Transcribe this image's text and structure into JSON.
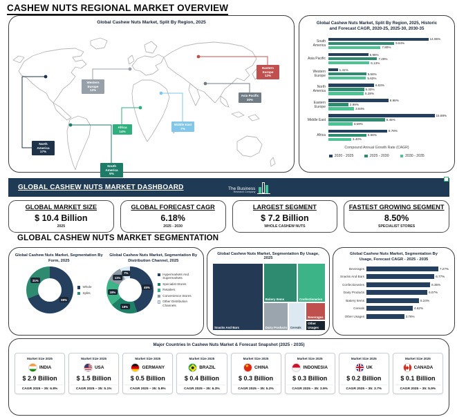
{
  "page_title": "CASHEW NUTS REGIONAL MARKET OVERVIEW",
  "map_panel": {
    "title": "Global Cashew Nuts Market, Split By Region, 2025",
    "regions": [
      {
        "name": "North America",
        "share": "17%",
        "color": "#1e3349"
      },
      {
        "name": "Western Europe",
        "share": "12%",
        "color": "#97a0a9"
      },
      {
        "name": "Eastern Europe",
        "share": "12%",
        "color": "#c0504d"
      },
      {
        "name": "Asia Pacific",
        "share": "30%",
        "color": "#6f7b85"
      },
      {
        "name": "Middle East",
        "share": "7%",
        "color": "#82c7ea"
      },
      {
        "name": "Africa",
        "share": "14%",
        "color": "#2fae7e"
      },
      {
        "name": "South America",
        "share": "9%",
        "color": "#1e7b68"
      }
    ]
  },
  "dashboard": {
    "title": "GLOBAL CASHEW NUTS MARKET DASHBOARD",
    "logo_line1": "The Business",
    "logo_line2": "Research Company",
    "cards": [
      {
        "heading": "GLOBAL MARKET SIZE",
        "value": "$ 10.4 Billion",
        "sub": "2025"
      },
      {
        "heading": "GLOBAL FORECAST CAGR",
        "value": "6.18%",
        "sub": "2025 - 2030"
      },
      {
        "heading": "LARGEST SEGMENT",
        "value": "$ 7.2 Billion",
        "sub": "WHOLE CASHEW NUTS"
      },
      {
        "heading": "FASTEST GROWING SEGMENT",
        "value": "8.50%",
        "sub": "SPECIALIST STORES"
      }
    ]
  },
  "segmentation_title": "GLOBAL CASHEW NUTS MARKET SEGMENTATION",
  "chart_data": [
    {
      "id": "region_cagr",
      "type": "bar",
      "title": "Global Cashew Nuts Market, Split By Region, 2025, Historic and Forecast CAGR, 2020-25, 2025-30, 2030-35",
      "categories": [
        "South America",
        "Asia Pacific",
        "Western Europe",
        "North America",
        "Eastern Europe",
        "Middle East",
        "Africa"
      ],
      "series": [
        {
          "name": "2020 - 2025",
          "color": "#24405e",
          "values": [
            14.96,
            5.96,
            1.41,
            6.83,
            8.98,
            15.88,
            8.78
          ]
        },
        {
          "name": "2025 - 2030",
          "color": "#2e8b70",
          "values": [
            9.84,
            7.29,
            5.66,
            5.33,
            2.99,
            8.45,
            5.68
          ]
        },
        {
          "name": "2030 - 2035",
          "color": "#4bc392",
          "values": [
            7.8,
            6.13,
            5.63,
            5.28,
            3.84,
            3.59,
            3.4
          ]
        }
      ],
      "xlabel": "Compound Annual Growth Rate (CAGR)",
      "xlim": [
        0,
        18
      ],
      "legend_position": "bottom",
      "grid": false
    },
    {
      "id": "form_donut",
      "type": "pie",
      "title": "Global Cashew Nuts Market, Segmentation By Form, 2025",
      "labels": [
        "Whole",
        "Splits"
      ],
      "values": [
        69,
        31
      ],
      "colors": [
        "#24405e",
        "#2e8b70"
      ],
      "legend_position": "right"
    },
    {
      "id": "distribution_donut",
      "type": "pie",
      "title": "Global Cashew Nuts Market, Segmentation By Distribution Channel, 2025",
      "labels": [
        "Hypermarkets And Supermarkets",
        "Specialist Stores",
        "Retailers",
        "Convenience Stores",
        "Other Distribution Channels"
      ],
      "values": [
        45,
        19,
        18,
        11,
        7
      ],
      "colors": [
        "#24405e",
        "#1f8068",
        "#3cb488",
        "#8e9aa3",
        "#d9e8f5"
      ],
      "legend_position": "right"
    },
    {
      "id": "usage_treemap",
      "type": "heatmap",
      "title": "Global Cashew Nuts Market, Segmentation By Usage, 2025",
      "items": [
        {
          "label": "Snacks And Bars",
          "color": "#243a54"
        },
        {
          "label": "Bakery Items",
          "color": "#2e8b70"
        },
        {
          "label": "Confectionaries",
          "color": "#3cb488"
        },
        {
          "label": "Dairy Products",
          "color": "#9aa5ad"
        },
        {
          "label": "Cereals",
          "color": "#dce9f2"
        },
        {
          "label": "Beverages",
          "color": "#c0504d"
        },
        {
          "label": "Other Usages",
          "color": "#18242f"
        }
      ]
    },
    {
      "id": "usage_cagr",
      "type": "bar",
      "title": "Global Cashew Nuts Market, Segmentation By Usage, Forecast CAGR - 2025 - 2035",
      "categories": [
        "Beverages",
        "Snacks And Bars",
        "Confectionaries",
        "Dairy Products",
        "Bakery Items",
        "Cereals",
        "Other Usages"
      ],
      "values": [
        7.27,
        6.77,
        6.35,
        6.07,
        5.24,
        4.62,
        3.76
      ],
      "color": "#24405e",
      "xlim": [
        0,
        8.2
      ],
      "grid": false
    }
  ],
  "countries_panel": {
    "title": "Major Countries In Cashew Nuts Market & Forecast Snapshot (2025 - 2035)",
    "market_size_label": "Market Size 2025",
    "cards": [
      {
        "country": "INDIA",
        "flag": "india",
        "size": "$ 2.9 Billion",
        "cagr": "CAGR 2025 – 35: 6.8%"
      },
      {
        "country": "USA",
        "flag": "usa",
        "size": "$ 1.5 Billion",
        "cagr": "CAGR 2025 – 35: 5.1%"
      },
      {
        "country": "GERMANY",
        "flag": "germany",
        "size": "$ 0.5 Billion",
        "cagr": "CAGR 2025 – 35: 5.9%"
      },
      {
        "country": "BRAZIL",
        "flag": "brazil",
        "size": "$ 0.4 Billion",
        "cagr": "CAGR 2025 – 35: 6.3%"
      },
      {
        "country": "CHINA",
        "flag": "china",
        "size": "$ 0.3 Billion",
        "cagr": "CAGR 2025 – 35: 5.2%"
      },
      {
        "country": "INDONESIA",
        "flag": "indonesia",
        "size": "$ 0.3 Billion",
        "cagr": "CAGR 2025 – 35: 3.9%"
      },
      {
        "country": "UK",
        "flag": "uk",
        "size": "$ 0.2 Billion",
        "cagr": "CAGR 2025 – 35: 3.7%"
      },
      {
        "country": "CANADA",
        "flag": "canada",
        "size": "$ 0.1 Billion",
        "cagr": "CAGR 2025 – 35: 5.9%"
      }
    ]
  }
}
